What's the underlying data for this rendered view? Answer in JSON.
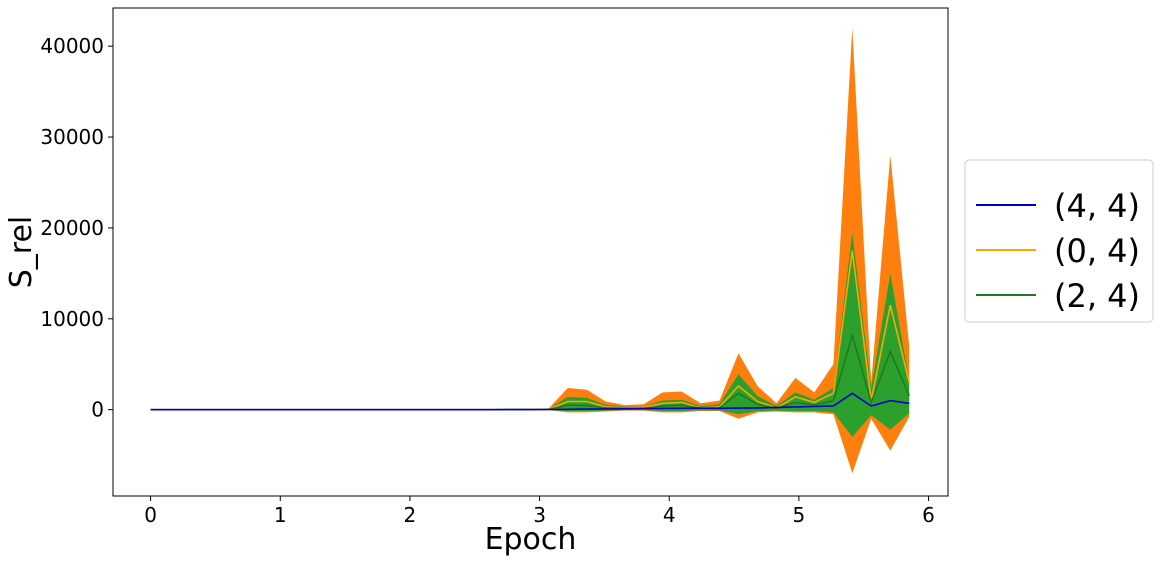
{
  "chart_data": {
    "type": "line",
    "title": "",
    "xlabel": "Epoch",
    "ylabel": "S_rel",
    "xlim": [
      -0.29,
      6.15
    ],
    "ylim": [
      -9500,
      44200
    ],
    "xticks": [
      0,
      1,
      2,
      3,
      4,
      5,
      6
    ],
    "yticks": [
      0,
      10000,
      20000,
      30000,
      40000
    ],
    "xtick_labels": [
      "0",
      "1",
      "2",
      "3",
      "4",
      "5",
      "6"
    ],
    "ytick_labels": [
      "0",
      "10000",
      "20000",
      "30000",
      "40000"
    ],
    "grid": false,
    "legend_position": "right, outside plot",
    "x": [
      0,
      0.146,
      0.293,
      0.439,
      0.585,
      0.731,
      0.878,
      1.024,
      1.17,
      1.316,
      1.463,
      1.609,
      1.755,
      1.902,
      2.048,
      2.194,
      2.34,
      2.487,
      2.633,
      2.779,
      2.925,
      3.072,
      3.218,
      3.364,
      3.51,
      3.657,
      3.803,
      3.949,
      4.096,
      4.242,
      4.388,
      4.534,
      4.681,
      4.827,
      4.973,
      5.119,
      5.266,
      5.412,
      5.558,
      5.705,
      5.851
    ],
    "series": [
      {
        "name": "(4, 4)",
        "color": "#0000cc",
        "values": [
          0,
          0,
          0,
          0,
          0,
          0,
          0,
          0,
          0,
          0,
          0,
          0,
          0,
          0,
          0,
          0,
          0,
          0,
          0,
          10,
          10,
          20,
          40,
          60,
          80,
          100,
          120,
          140,
          150,
          160,
          150,
          170,
          200,
          250,
          300,
          350,
          400,
          1800,
          400,
          1000,
          700
        ],
        "band": null
      },
      {
        "name": "(0, 4)",
        "color": "#ffa500",
        "values": [
          0,
          0,
          0,
          0,
          0,
          0,
          0,
          0,
          0,
          0,
          0,
          0,
          0,
          0,
          0,
          0,
          0,
          0,
          0,
          20,
          20,
          50,
          900,
          900,
          300,
          200,
          250,
          700,
          800,
          200,
          300,
          2600,
          900,
          200,
          1400,
          800,
          1800,
          17500,
          1000,
          11500,
          3000
        ],
        "band": {
          "color": "#ff7f0e",
          "lower": [
            0,
            0,
            0,
            0,
            0,
            0,
            0,
            0,
            0,
            0,
            0,
            0,
            0,
            0,
            0,
            0,
            0,
            0,
            0,
            -10,
            -10,
            -50,
            -300,
            -300,
            -200,
            -100,
            -100,
            -300,
            -300,
            -150,
            -150,
            -1000,
            -300,
            -200,
            -300,
            -300,
            -500,
            -7000,
            -1000,
            -4500,
            -800
          ],
          "upper": [
            0,
            0,
            0,
            0,
            0,
            0,
            0,
            0,
            0,
            0,
            0,
            0,
            0,
            0,
            0,
            0,
            0,
            0,
            0,
            40,
            40,
            150,
            2400,
            2200,
            900,
            500,
            600,
            1900,
            2000,
            700,
            1000,
            6200,
            2600,
            700,
            3500,
            1900,
            5000,
            42000,
            3000,
            28000,
            7000
          ]
        }
      },
      {
        "name": "(2, 4)",
        "color": "#1e7b1e",
        "values": [
          0,
          0,
          0,
          0,
          0,
          0,
          0,
          0,
          0,
          0,
          0,
          0,
          0,
          0,
          0,
          0,
          0,
          0,
          0,
          10,
          10,
          30,
          500,
          450,
          200,
          150,
          150,
          400,
          500,
          150,
          200,
          1800,
          600,
          150,
          800,
          500,
          1000,
          8200,
          800,
          6400,
          1500
        ],
        "band": {
          "color": "#2ca02c",
          "lower": [
            0,
            0,
            0,
            0,
            0,
            0,
            0,
            0,
            0,
            0,
            0,
            0,
            0,
            0,
            0,
            0,
            0,
            0,
            0,
            -5,
            -5,
            -30,
            -150,
            -150,
            -100,
            -50,
            -50,
            -150,
            -150,
            -80,
            -80,
            -500,
            -150,
            -100,
            -150,
            -150,
            -300,
            -3000,
            -600,
            -2200,
            -400
          ],
          "upper": [
            0,
            0,
            0,
            0,
            0,
            0,
            0,
            0,
            0,
            0,
            0,
            0,
            0,
            0,
            0,
            0,
            0,
            0,
            0,
            25,
            25,
            80,
            1400,
            1300,
            550,
            300,
            350,
            1000,
            1100,
            400,
            600,
            3900,
            1500,
            400,
            1900,
            1100,
            2400,
            19500,
            2400,
            15000,
            3200
          ]
        }
      }
    ]
  }
}
